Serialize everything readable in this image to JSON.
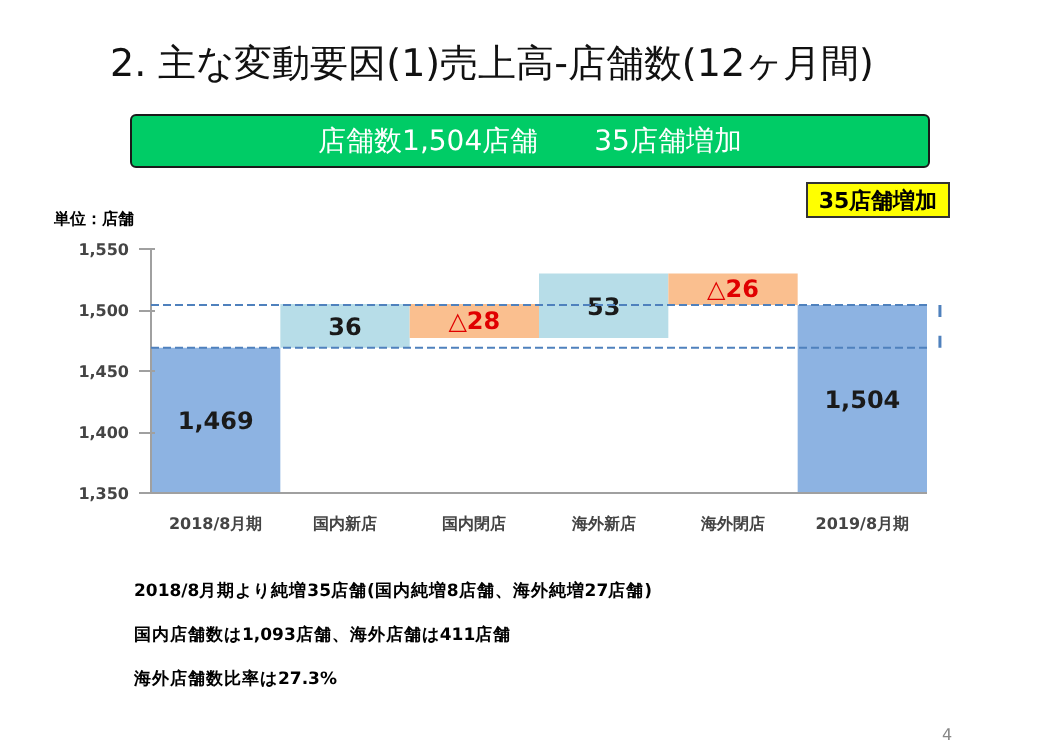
{
  "chart_data": {
    "type": "bar",
    "title": "2. 主な変動要因(1)売上高-店舗数(12ヶ月間)",
    "subtitle": "店舗数1,504店舗　　35店舗増加",
    "ylabel": "単位：店舗",
    "categories": [
      "2018/8月期",
      "国内新店",
      "国内閉店",
      "海外新店",
      "海外閉店",
      "2019/8月期"
    ],
    "values": [
      1469,
      36,
      -28,
      53,
      -26,
      1504
    ],
    "base": [
      null,
      1469,
      1505,
      1477,
      1530,
      null
    ],
    "colors": [
      "#8db3e2",
      "#b7dde8",
      "#fabf8f",
      "#b7dde8",
      "#fabf8f",
      "#8db3e2"
    ],
    "value_labels": [
      "1,469",
      "36",
      "△28",
      "53",
      "△26",
      "1,504"
    ],
    "ylim": [
      1350,
      1550
    ],
    "yticks": [
      {
        "value": 1350,
        "label": "1,350"
      },
      {
        "value": 1400,
        "label": "1,400"
      },
      {
        "value": 1450,
        "label": "1,450"
      },
      {
        "value": 1500,
        "label": "1,500"
      },
      {
        "value": 1550,
        "label": "1,550"
      }
    ],
    "ref_lines": [
      {
        "axis": "y",
        "value": 1469,
        "label": null,
        "color": "#4f81bd",
        "line_style": "dashed"
      },
      {
        "axis": "y",
        "value": 1504,
        "label": null,
        "color": "#4f81bd",
        "line_style": "dashed"
      }
    ],
    "annotations": [
      "35店舗増加",
      "2018/8月期より純増35店舗(国内純増8店舗、海外純増27店舗)",
      "国内店舗数は1,093店舗、海外店舗は411店舗",
      "海外店舗数比率は27.3%",
      "4"
    ],
    "grid": false,
    "legend": false
  }
}
